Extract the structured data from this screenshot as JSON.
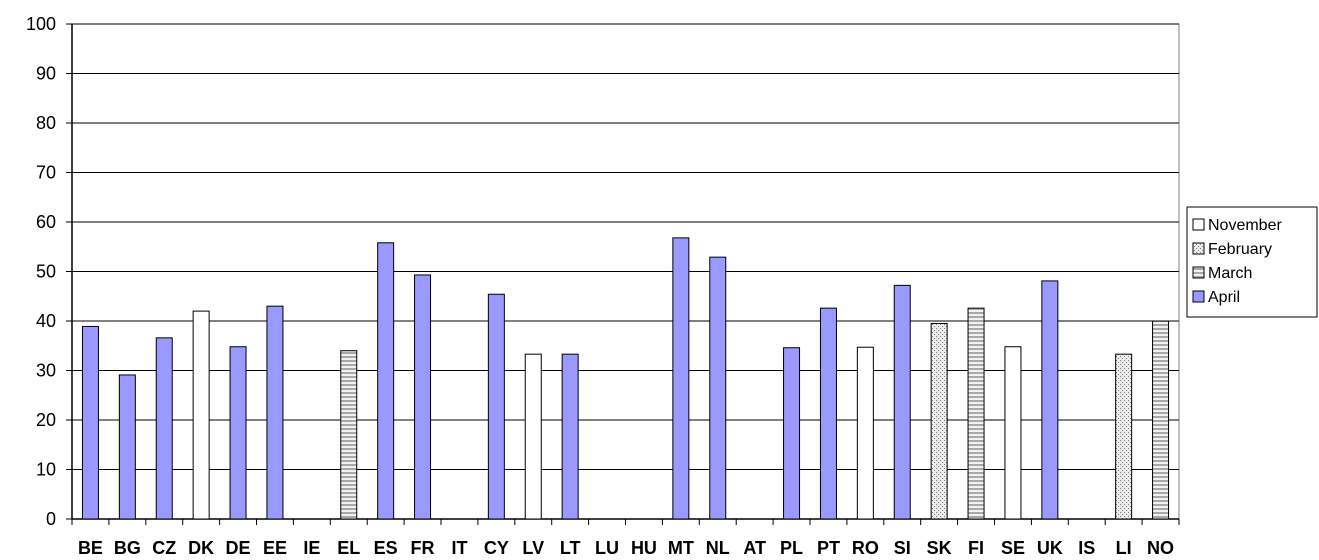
{
  "chart_data": {
    "type": "bar",
    "title": "",
    "xlabel": "",
    "ylabel": "",
    "ylim": [
      0,
      100
    ],
    "yticks": [
      0,
      10,
      20,
      30,
      40,
      50,
      60,
      70,
      80,
      90,
      100
    ],
    "grid": true,
    "legend_position": "right",
    "categories": [
      "BE",
      "BG",
      "CZ",
      "DK",
      "DE",
      "EE",
      "IE",
      "EL",
      "ES",
      "FR",
      "IT",
      "CY",
      "LV",
      "LT",
      "LU",
      "HU",
      "MT",
      "NL",
      "AT",
      "PL",
      "PT",
      "RO",
      "SI",
      "SK",
      "FI",
      "SE",
      "UK",
      "IS",
      "LI",
      "NO"
    ],
    "series": [
      {
        "name": "November",
        "color": "#ffffff",
        "pattern": "solid",
        "values": [
          null,
          null,
          null,
          42,
          null,
          null,
          null,
          null,
          null,
          null,
          null,
          null,
          33.3,
          null,
          null,
          null,
          null,
          null,
          null,
          null,
          null,
          34.7,
          null,
          null,
          null,
          34.8,
          null,
          null,
          null,
          null
        ]
      },
      {
        "name": "February",
        "color": "#c0c0c0",
        "pattern": "dotted",
        "values": [
          null,
          null,
          null,
          null,
          null,
          null,
          null,
          null,
          null,
          null,
          null,
          null,
          null,
          null,
          null,
          null,
          null,
          null,
          null,
          null,
          null,
          null,
          null,
          39.5,
          null,
          null,
          null,
          null,
          33.3,
          null
        ]
      },
      {
        "name": "March",
        "color": "#c0c0c0",
        "pattern": "horizontal-stripes",
        "values": [
          null,
          null,
          null,
          null,
          null,
          null,
          null,
          34,
          null,
          null,
          null,
          null,
          null,
          null,
          null,
          null,
          null,
          null,
          null,
          null,
          null,
          null,
          null,
          null,
          42.6,
          null,
          null,
          null,
          null,
          40
        ]
      },
      {
        "name": "April",
        "color": "#9999ff",
        "pattern": "solid",
        "values": [
          38.9,
          29.1,
          36.6,
          null,
          34.8,
          43,
          null,
          null,
          55.8,
          49.3,
          null,
          45.4,
          null,
          33.3,
          null,
          null,
          56.8,
          52.9,
          null,
          34.6,
          42.6,
          null,
          47.2,
          null,
          null,
          null,
          48.1,
          null,
          null,
          null
        ]
      }
    ]
  }
}
